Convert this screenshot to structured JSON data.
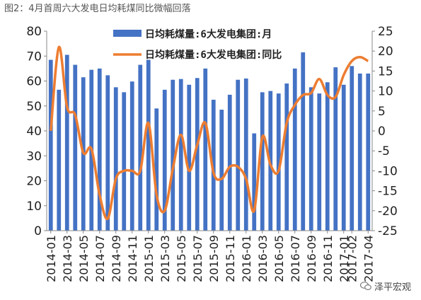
{
  "figure": {
    "caption": "图2：4月首周六大发电日均耗煤同比微幅回落",
    "watermark": "泽平宏观"
  },
  "chart_data": {
    "type": "bar+line",
    "categories": [
      "2014-01",
      "2014-02",
      "2014-03",
      "2014-04",
      "2014-05",
      "2014-06",
      "2014-07",
      "2014-08",
      "2014-09",
      "2014-10",
      "2014-11",
      "2014-12",
      "2015-01",
      "2015-02",
      "2015-03",
      "2015-04",
      "2015-05",
      "2015-06",
      "2015-07",
      "2015-08",
      "2015-09",
      "2015-10",
      "2015-11",
      "2015-12",
      "2016-01",
      "2016-02",
      "2016-03",
      "2016-04",
      "2016-05",
      "2016-06",
      "2016-07",
      "2016-08",
      "2016-09",
      "2016-10",
      "2016-11",
      "2016-12",
      "2017-01",
      "2017-02",
      "2017-03",
      "2017-04"
    ],
    "tick_labels": [
      "2014-01",
      "2014-03",
      "2014-05",
      "2014-07",
      "2014-09",
      "2014-11",
      "2015-01",
      "2015-03",
      "2015-05",
      "2015-07",
      "2015-09",
      "2015-11",
      "2016-01",
      "2016-03",
      "2016-05",
      "2016-07",
      "2016-09",
      "2016-11",
      "2017-01",
      "2017-02",
      "2017-04"
    ],
    "tick_indices": [
      0,
      2,
      4,
      6,
      8,
      10,
      12,
      14,
      16,
      18,
      20,
      22,
      24,
      26,
      28,
      30,
      32,
      34,
      36,
      37,
      39
    ],
    "series": [
      {
        "name": "日均耗煤量:6大发电集团:月",
        "kind": "bar",
        "axis": "left",
        "color": "#4472C4",
        "values": [
          68.5,
          56.5,
          70.5,
          66.5,
          61.5,
          64.5,
          65.0,
          62.3,
          57.5,
          55.5,
          59.8,
          66.5,
          68.5,
          49.0,
          56.5,
          60.5,
          60.8,
          58.5,
          61.2,
          65.0,
          52.5,
          48.5,
          54.5,
          60.5,
          61.0,
          39.0,
          55.5,
          56.0,
          55.0,
          59.0,
          65.0,
          71.5,
          57.5,
          55.0,
          59.5,
          65.5,
          58.5,
          66.0,
          63.0,
          63.0
        ]
      },
      {
        "name": "日均耗煤量:6大发电集团:同比",
        "kind": "line",
        "axis": "right",
        "color": "#ED7D31",
        "values": [
          0.0,
          21.0,
          6.0,
          4.0,
          -5.5,
          -4.5,
          -16.0,
          -22.0,
          -12.0,
          -10.0,
          -10.0,
          -10.0,
          2.0,
          -16.0,
          -20.0,
          -9.5,
          -1.0,
          -10.0,
          -3.5,
          2.0,
          -10.5,
          -12.0,
          -9.0,
          -9.0,
          -12.0,
          -20.0,
          -1.5,
          -8.5,
          -10.0,
          2.0,
          6.5,
          9.0,
          9.5,
          13.0,
          9.0,
          8.5,
          14.0,
          17.5,
          18.5,
          17.5
        ]
      }
    ],
    "left_axis": {
      "ylim": [
        0,
        80
      ],
      "ticks": [
        "0",
        "10",
        "20",
        "30",
        "40",
        "50",
        "60",
        "70",
        "80"
      ]
    },
    "right_axis": {
      "ylim": [
        -25,
        25
      ],
      "ticks": [
        "-25",
        "-20",
        "-15",
        "-10",
        "-5",
        "0",
        "5",
        "10",
        "15",
        "20",
        "25"
      ]
    },
    "grid": false,
    "legend_position": "top-center"
  }
}
